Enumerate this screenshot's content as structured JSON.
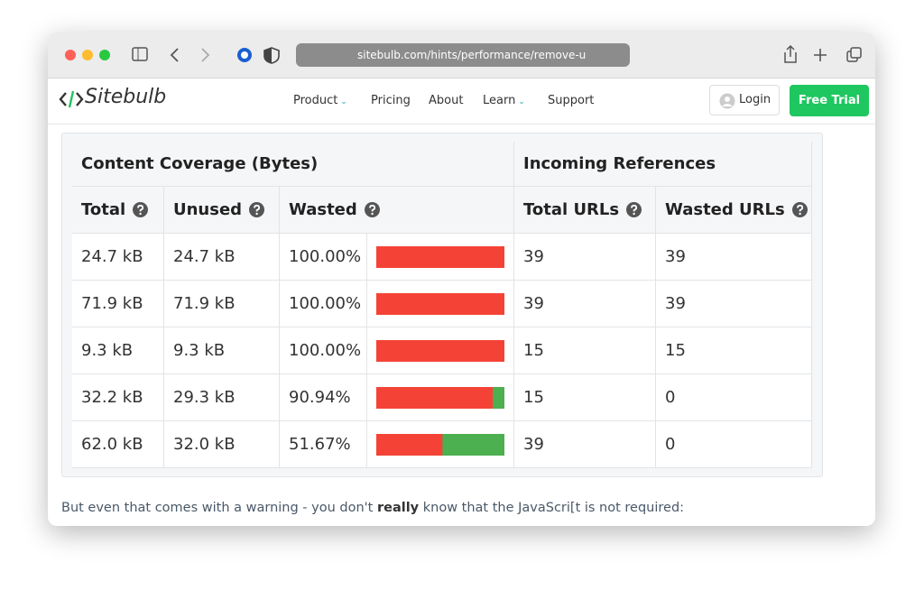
{
  "browser": {
    "url": "sitebulb.com/hints/performance/remove-u"
  },
  "site": {
    "logo": "Sitebulb",
    "nav": [
      "Product",
      "Pricing",
      "About",
      "Learn",
      "Support"
    ],
    "login": "Login",
    "cta": "Free Trial"
  },
  "table": {
    "groups": [
      "Content Coverage (Bytes)",
      "Incoming References"
    ],
    "columns": [
      "Total",
      "Unused",
      "Wasted",
      "Total URLs",
      "Wasted URLs"
    ],
    "rows": [
      [
        "24.7 kB",
        "24.7 kB",
        {
          "value": 100,
          "label": "100.00%"
        },
        "39",
        "39"
      ],
      [
        "71.9 kB",
        "71.9 kB",
        {
          "value": 100,
          "label": "100.00%"
        },
        "39",
        "39"
      ],
      [
        "9.3 kB",
        "9.3 kB",
        {
          "value": 100,
          "label": "100.00%"
        },
        "15",
        "15"
      ],
      [
        "32.2 kB",
        "29.3 kB",
        {
          "value": 90.94,
          "label": "90.94%"
        },
        "15",
        "0"
      ],
      [
        "62.0 kB",
        "32.0 kB",
        {
          "value": 51.67,
          "label": "51.67%"
        },
        "39",
        "0"
      ]
    ]
  },
  "paragraph": [
    "But even that comes with a warning - you don't ",
    "really",
    " know that the JavaScri[t is not required:"
  ]
}
